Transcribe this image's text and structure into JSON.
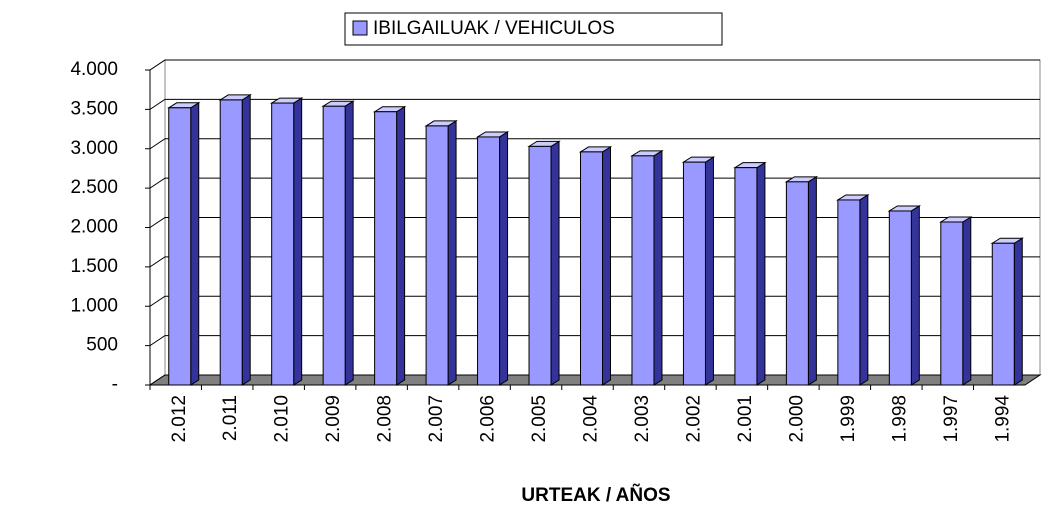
{
  "chart_data": {
    "type": "bar",
    "legend": "IBILGAILUAK / VEHICULOS",
    "x_label": "URTEAK / AÑOS",
    "categories": [
      "2.012",
      "2.011",
      "2.010",
      "2.009",
      "2.008",
      "2.007",
      "2.006",
      "2.005",
      "2.004",
      "2.003",
      "2.002",
      "2.001",
      "2.000",
      "1.999",
      "1.998",
      "1.997",
      "1.994"
    ],
    "values": [
      3520,
      3620,
      3580,
      3540,
      3470,
      3290,
      3150,
      3030,
      2960,
      2910,
      2830,
      2760,
      2580,
      2350,
      2210,
      2070,
      1800
    ],
    "color": "#9999ff",
    "ylim": [
      0,
      4000
    ],
    "yticks": [
      {
        "value": 0,
        "label": "-"
      },
      500,
      {
        "value": 1000,
        "label": "1.000"
      },
      {
        "value": 1500,
        "label": "1.500"
      },
      {
        "value": 2000,
        "label": "2.000"
      },
      {
        "value": 2500,
        "label": "2.500"
      },
      {
        "value": 3000,
        "label": "3.000"
      },
      {
        "value": 3500,
        "label": "3.500"
      },
      {
        "value": 4000,
        "label": "4.000"
      }
    ],
    "grid": true
  }
}
